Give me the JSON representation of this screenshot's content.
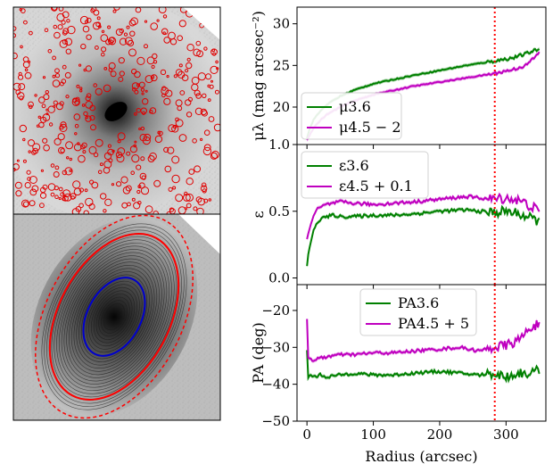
{
  "images": {
    "top": {
      "name": "Masked 3.6 micron galaxy image"
    },
    "bottom": {
      "name": "Isophote ellipse fits"
    }
  },
  "colors": {
    "green": "#008000",
    "magenta": "#bf00bf",
    "red": "#ff0000",
    "blue": "#0000cc"
  },
  "chart_data": [
    {
      "type": "line",
      "panel": "surface-brightness",
      "ylabel": "μλ (mag arcsec⁻²)",
      "ylim": [
        32,
        15.5
      ],
      "y_inverted": true,
      "yticks": [
        20,
        25,
        30
      ],
      "xlim": [
        -15,
        360
      ],
      "legend": {
        "placement": "bottom-left",
        "entries": [
          "μ3.6",
          "μ4.5 − 2"
        ]
      },
      "series": [
        {
          "name": "μ3.6",
          "color": "green",
          "x": [
            0,
            5,
            10,
            20,
            30,
            50,
            70,
            100,
            130,
            160,
            200,
            240,
            280,
            310,
            330,
            350
          ],
          "y": [
            16.3,
            17.6,
            18.5,
            19.5,
            20.3,
            21.3,
            22.0,
            22.8,
            23.3,
            23.8,
            24.4,
            25.0,
            25.5,
            25.9,
            26.4,
            27.0
          ]
        },
        {
          "name": "μ4.5 − 2",
          "color": "magenta",
          "x": [
            0,
            5,
            10,
            20,
            30,
            50,
            70,
            100,
            130,
            160,
            200,
            240,
            280,
            310,
            330,
            350
          ],
          "y": [
            16.0,
            16.8,
            17.5,
            18.4,
            19.1,
            20.0,
            20.7,
            21.5,
            22.0,
            22.5,
            23.0,
            23.5,
            24.0,
            24.5,
            25.0,
            26.5
          ]
        }
      ],
      "vline": {
        "x": 283,
        "color": "red",
        "style": "dotted"
      }
    },
    {
      "type": "line",
      "panel": "ellipticity",
      "ylabel": "ε",
      "ylim": [
        -0.05,
        1.0
      ],
      "yticks": [
        0.0,
        0.5,
        1.0
      ],
      "ytick_labels": [
        "0.0",
        "0.5",
        "1.0"
      ],
      "xlim": [
        -15,
        360
      ],
      "legend": {
        "placement": "top-left",
        "entries": [
          "ε3.6",
          "ε4.5 + 0.1"
        ]
      },
      "series": [
        {
          "name": "ε3.6",
          "color": "green",
          "x": [
            0,
            2,
            5,
            10,
            15,
            20,
            30,
            40,
            50,
            70,
            100,
            130,
            160,
            200,
            240,
            260,
            280,
            300,
            320,
            340,
            350
          ],
          "y": [
            0.09,
            0.18,
            0.26,
            0.35,
            0.41,
            0.44,
            0.46,
            0.47,
            0.46,
            0.46,
            0.47,
            0.47,
            0.48,
            0.5,
            0.51,
            0.5,
            0.49,
            0.5,
            0.48,
            0.44,
            0.43
          ]
        },
        {
          "name": "ε4.5 + 0.1",
          "color": "magenta",
          "x": [
            0,
            2,
            5,
            10,
            15,
            20,
            30,
            40,
            50,
            70,
            100,
            130,
            160,
            200,
            240,
            260,
            280,
            300,
            320,
            340,
            350
          ],
          "y": [
            0.28,
            0.33,
            0.4,
            0.47,
            0.51,
            0.53,
            0.55,
            0.56,
            0.57,
            0.56,
            0.55,
            0.56,
            0.57,
            0.59,
            0.61,
            0.6,
            0.59,
            0.6,
            0.58,
            0.53,
            0.5
          ]
        }
      ],
      "vline": {
        "x": 283,
        "color": "red",
        "style": "dotted"
      }
    },
    {
      "type": "line",
      "panel": "position-angle",
      "ylabel": "PA (deg)",
      "ylim": [
        -50,
        -13
      ],
      "yticks": [
        -50,
        -40,
        -30,
        -20
      ],
      "xlim": [
        -15,
        360
      ],
      "xticks": [
        0,
        100,
        200,
        300
      ],
      "xlabel": "Radius (arcsec)",
      "legend": {
        "placement": "top-center",
        "entries": [
          "PA3.6",
          "PA4.5 + 5"
        ]
      },
      "series": [
        {
          "name": "PA3.6",
          "color": "green",
          "x": [
            0,
            2,
            5,
            10,
            20,
            30,
            50,
            70,
            100,
            130,
            160,
            200,
            230,
            260,
            280,
            300,
            320,
            340,
            350
          ],
          "y": [
            -31,
            -38,
            -37.5,
            -38,
            -37.5,
            -38,
            -37.5,
            -37,
            -37.5,
            -37.5,
            -37,
            -36.5,
            -37,
            -37.5,
            -37,
            -38,
            -37,
            -37,
            -36
          ]
        },
        {
          "name": "PA4.5 + 5",
          "color": "magenta",
          "x": [
            0,
            2,
            5,
            10,
            20,
            30,
            50,
            70,
            100,
            130,
            160,
            200,
            230,
            260,
            280,
            300,
            320,
            340,
            350
          ],
          "y": [
            -22,
            -33,
            -33,
            -33.5,
            -33,
            -32.5,
            -32,
            -32,
            -31.5,
            -31.5,
            -31,
            -30.5,
            -30,
            -31,
            -30,
            -29.5,
            -28,
            -24,
            -24
          ]
        }
      ],
      "vline": {
        "x": 283,
        "color": "red",
        "style": "dotted"
      }
    }
  ]
}
